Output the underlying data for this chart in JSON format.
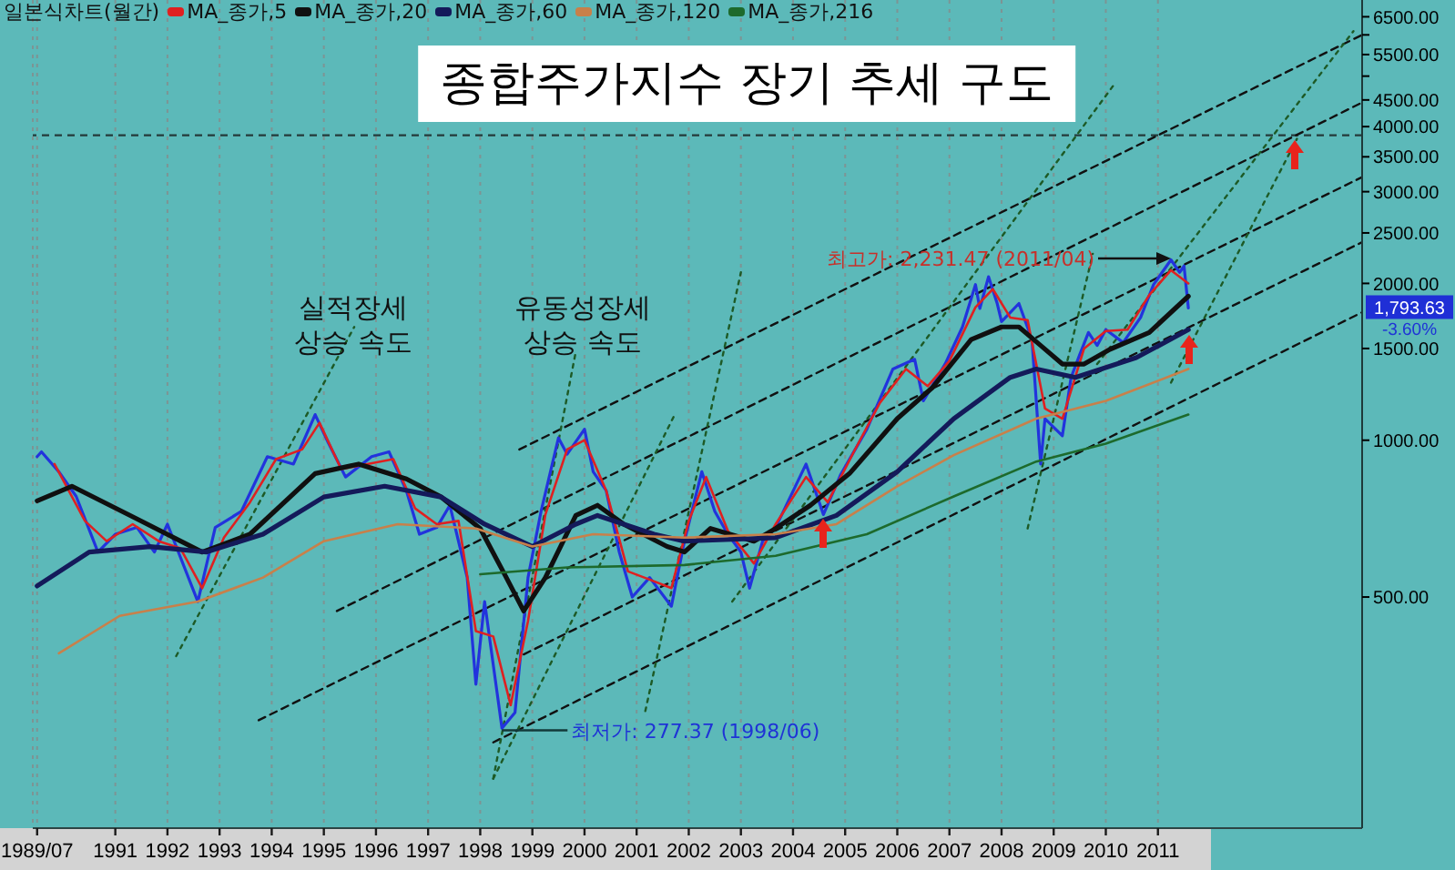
{
  "chart_data": {
    "type": "line",
    "title": "종합주가지수 장기 추세 구도",
    "legend_title": "일본식차트(월간)",
    "legend": "top left",
    "log": true,
    "grid": "x",
    "xlim": [
      "1989-06",
      "2014-12"
    ],
    "xticks": [
      {
        "value": "1989-07",
        "label": "1989/07"
      },
      "1991",
      "1992",
      "1993",
      "1994",
      "1995",
      "1996",
      "1997",
      "1998",
      "1999",
      "2000",
      "2001",
      "2002",
      "2003",
      "2004",
      "2005",
      "2006",
      "2007",
      "2008",
      "2009",
      "2010",
      "2011"
    ],
    "ylim": [
      180,
      7000
    ],
    "yticks": [
      {
        "value": 500,
        "label": "500.00"
      },
      {
        "value": 1000,
        "label": "1000.00"
      },
      {
        "value": 1500,
        "label": "1500.00"
      },
      {
        "value": 2000,
        "label": "2000.00"
      },
      {
        "value": 2500,
        "label": "2500.00"
      },
      {
        "value": 3000,
        "label": "3000.00"
      },
      {
        "value": 3500,
        "label": "3500.00"
      },
      {
        "value": 4000,
        "label": "4000.00"
      },
      {
        "value": 4500,
        "label": "4500.00"
      },
      {
        "value": 5000,
        "label": null
      },
      {
        "value": 5500,
        "label": "5500.00"
      },
      {
        "value": 6000,
        "label": null
      },
      {
        "value": 6500,
        "label": "6500.00"
      }
    ],
    "series": [
      {
        "color": "#111111",
        "line_style": "dashed",
        "x": [
          "1998-10",
          "2014-12"
        ],
        "values": [
          960,
          6000
        ]
      },
      {
        "color": "#111111",
        "line_style": "dashed",
        "x": [
          "1995-04",
          "2014-12"
        ],
        "values": [
          470,
          4450
        ]
      },
      {
        "color": "#111111",
        "line_style": "dashed",
        "x": [
          "1993-10",
          "2014-12"
        ],
        "values": [
          290,
          3200
        ]
      },
      {
        "color": "#111111",
        "line_style": "dashed",
        "x": [
          "1998-11",
          "2014-12"
        ],
        "values": [
          388,
          2400
        ]
      },
      {
        "color": "#111111",
        "line_style": "dashed",
        "x": [
          "1998-04",
          "2014-12"
        ],
        "values": [
          263,
          1760
        ]
      },
      {
        "color": "#1d5a26",
        "line_style": "dotted",
        "x": [
          "1992-03",
          "1995-08"
        ],
        "values": [
          385,
          1650
        ]
      },
      {
        "color": "#1d5a26",
        "line_style": "dotted",
        "x": [
          "1998-04",
          "1999-11"
        ],
        "values": [
          224,
          1480
        ]
      },
      {
        "color": "#1d5a26",
        "line_style": "dotted",
        "x": [
          "1998-04",
          "2001-10"
        ],
        "values": [
          224,
          1130
        ]
      },
      {
        "color": "#1d5a26",
        "line_style": "dotted",
        "x": [
          "2001-03",
          "2003-01"
        ],
        "values": [
          302,
          2100
        ]
      },
      {
        "color": "#1d5a26",
        "line_style": "dotted",
        "x": [
          "2002-11",
          "2010-03"
        ],
        "values": [
          490,
          4830
        ]
      },
      {
        "color": "#1d5a26",
        "line_style": "dotted",
        "x": [
          "2008-07",
          "2009-10"
        ],
        "values": [
          677,
          2280
        ]
      },
      {
        "color": "#1d5a26",
        "line_style": "dotted",
        "x": [
          "2009-11",
          "2014-10"
        ],
        "values": [
          1400,
          6100
        ]
      },
      {
        "color": "#1d5a26",
        "line_style": "dotted",
        "x": [
          "2011-04",
          "2013-09"
        ],
        "values": [
          1290,
          3790
        ]
      },
      {
        "color": "#2233dd",
        "x": [
          "1989-07",
          "1989-08",
          "1989-12",
          "1990-04",
          "1990-09",
          "1991-01",
          "1991-06",
          "1991-10",
          "1992-01",
          "1992-08",
          "1992-12",
          "1993-06",
          "1993-12",
          "1994-06",
          "1994-11",
          "1995-02",
          "1995-06",
          "1995-12",
          "1996-04",
          "1996-08",
          "1996-11",
          "1997-03",
          "1997-06",
          "1997-10",
          "1997-12",
          "1998-02",
          "1998-06",
          "1998-09",
          "1998-12",
          "1999-03",
          "1999-07",
          "1999-09",
          "2000-01",
          "2000-03",
          "2000-06",
          "2000-09",
          "2000-12",
          "2001-04",
          "2001-09",
          "2001-12",
          "2002-04",
          "2002-07",
          "2002-10",
          "2003-01",
          "2003-03",
          "2003-06",
          "2003-09",
          "2004-04",
          "2004-08",
          "2004-12",
          "2005-06",
          "2005-12",
          "2006-05",
          "2006-07",
          "2006-12",
          "2007-04",
          "2007-07",
          "2007-08",
          "2007-10",
          "2007-12",
          "2008-01",
          "2008-05",
          "2008-08",
          "2008-10",
          "2008-11",
          "2009-03",
          "2009-05",
          "2009-07",
          "2009-09",
          "2009-11",
          "2010-01",
          "2010-05",
          "2010-09",
          "2010-12",
          "2011-04",
          "2011-06",
          "2011-07",
          "2011-08"
        ],
        "values": [
          930,
          950,
          870,
          780,
          610,
          660,
          680,
          610,
          690,
          490,
          680,
          730,
          930,
          900,
          1120,
          990,
          850,
          930,
          950,
          800,
          660,
          680,
          750,
          545,
          340,
          490,
          280,
          300,
          545,
          730,
          1010,
          940,
          1050,
          870,
          800,
          610,
          500,
          545,
          480,
          640,
          870,
          730,
          660,
          610,
          520,
          640,
          680,
          900,
          720,
          860,
          1050,
          1370,
          1430,
          1190,
          1400,
          1650,
          1990,
          1790,
          2060,
          1830,
          1690,
          1830,
          1560,
          900,
          1100,
          1020,
          1320,
          1460,
          1610,
          1520,
          1630,
          1540,
          1720,
          1990,
          2220,
          2100,
          2160,
          1793.63
        ]
      },
      {
        "name": "MA_종가,5",
        "color": "#e02020",
        "x": [
          "1989-11",
          "1990-06",
          "1990-11",
          "1991-05",
          "1991-11",
          "1992-04",
          "1992-09",
          "1993-02",
          "1993-08",
          "1994-02",
          "1994-08",
          "1994-12",
          "1995-05",
          "1995-11",
          "1996-05",
          "1996-10",
          "1997-03",
          "1997-08",
          "1997-12",
          "1998-04",
          "1998-08",
          "1998-12",
          "1999-04",
          "1999-09",
          "2000-01",
          "2000-06",
          "2000-11",
          "2001-04",
          "2001-09",
          "2002-01",
          "2002-05",
          "2002-10",
          "2003-04",
          "2003-09",
          "2004-04",
          "2004-09",
          "2005-03",
          "2005-09",
          "2006-03",
          "2006-08",
          "2007-01",
          "2007-07",
          "2007-11",
          "2008-03",
          "2008-07",
          "2008-11",
          "2009-03",
          "2009-08",
          "2010-01",
          "2010-06",
          "2010-11",
          "2011-04",
          "2011-08"
        ],
        "values": [
          900,
          700,
          640,
          690,
          640,
          620,
          520,
          650,
          760,
          920,
          960,
          1080,
          880,
          900,
          920,
          740,
          690,
          700,
          430,
          420,
          310,
          450,
          720,
          960,
          1000,
          800,
          560,
          540,
          520,
          700,
          850,
          670,
          580,
          690,
          850,
          760,
          950,
          1180,
          1370,
          1270,
          1420,
          1800,
          1950,
          1720,
          1700,
          1150,
          1100,
          1500,
          1620,
          1630,
          1900,
          2120,
          2000
        ]
      },
      {
        "name": "MA_종가,20",
        "color": "#101010",
        "x": [
          "1989-07",
          "1990-03",
          "1991-06",
          "1992-09",
          "1993-08",
          "1994-11",
          "1995-09",
          "1996-08",
          "1997-04",
          "1998-01",
          "1998-07",
          "1998-11",
          "1999-04",
          "1999-11",
          "2000-04",
          "2000-10",
          "2001-08",
          "2001-12",
          "2002-06",
          "2003-04",
          "2003-09",
          "2004-05",
          "2005-02",
          "2006-01",
          "2006-09",
          "2007-06",
          "2008-01",
          "2008-05",
          "2008-10",
          "2009-03",
          "2009-08",
          "2010-02",
          "2010-11",
          "2011-08"
        ],
        "values": [
          765,
          816,
          706,
          610,
          660,
          863,
          900,
          843,
          778,
          677,
          545,
          470,
          545,
          717,
          750,
          690,
          625,
          610,
          677,
          640,
          677,
          750,
          863,
          1100,
          1260,
          1560,
          1650,
          1650,
          1520,
          1400,
          1400,
          1495,
          1610,
          1890
        ]
      },
      {
        "name": "MA_종가,60",
        "color": "#141a5a",
        "x": [
          "1989-07",
          "1990-07",
          "1991-09",
          "1992-10",
          "1993-11",
          "1995-01",
          "1996-03",
          "1997-04",
          "1998-02",
          "1999-01",
          "1999-11",
          "2000-04",
          "2001-05",
          "2001-12",
          "2003-09",
          "2004-11",
          "2006-01",
          "2007-02",
          "2008-03",
          "2008-09",
          "2009-06",
          "2010-08",
          "2011-08"
        ],
        "values": [
          525,
          610,
          625,
          610,
          660,
          778,
          816,
          778,
          690,
          625,
          690,
          717,
          660,
          640,
          650,
          717,
          870,
          1100,
          1320,
          1370,
          1320,
          1440,
          1630
        ]
      },
      {
        "name": "MA_종가,120",
        "color": "#c8804a",
        "x": [
          "1989-12",
          "1991-02",
          "1992-08",
          "1993-11",
          "1995-01",
          "1996-06",
          "1997-12",
          "1999-01",
          "2000-03",
          "2001-12",
          "2003-09",
          "2004-11",
          "2006-01",
          "2007-02",
          "2008-09",
          "2010-01",
          "2011-08"
        ],
        "values": [
          390,
          460,
          490,
          545,
          640,
          690,
          677,
          625,
          660,
          650,
          660,
          690,
          816,
          936,
          1100,
          1190,
          1370
        ]
      },
      {
        "name": "MA_종가,216",
        "color": "#1d6a2c",
        "x": [
          "1998-01",
          "1999-09",
          "2001-12",
          "2003-09",
          "2005-06",
          "2007-02",
          "2008-09",
          "2010-01",
          "2011-08"
        ],
        "values": [
          553,
          570,
          576,
          600,
          660,
          780,
          910,
          985,
          1120
        ]
      }
    ],
    "ref_lines": [
      {
        "axis": "y",
        "value": 3850,
        "color": "#243a3a",
        "line_style": "dashed"
      }
    ],
    "annotations": [
      "실적장세\n상승 속도",
      "유동성장세\n상승 속도",
      {
        "text": "최저가: 277.37 (1998/06)",
        "x": "1998-06",
        "y": 277.37
      },
      "최고가: 2,231.47 (2011/04)",
      "1,793.63",
      "-3.60%"
    ]
  }
}
